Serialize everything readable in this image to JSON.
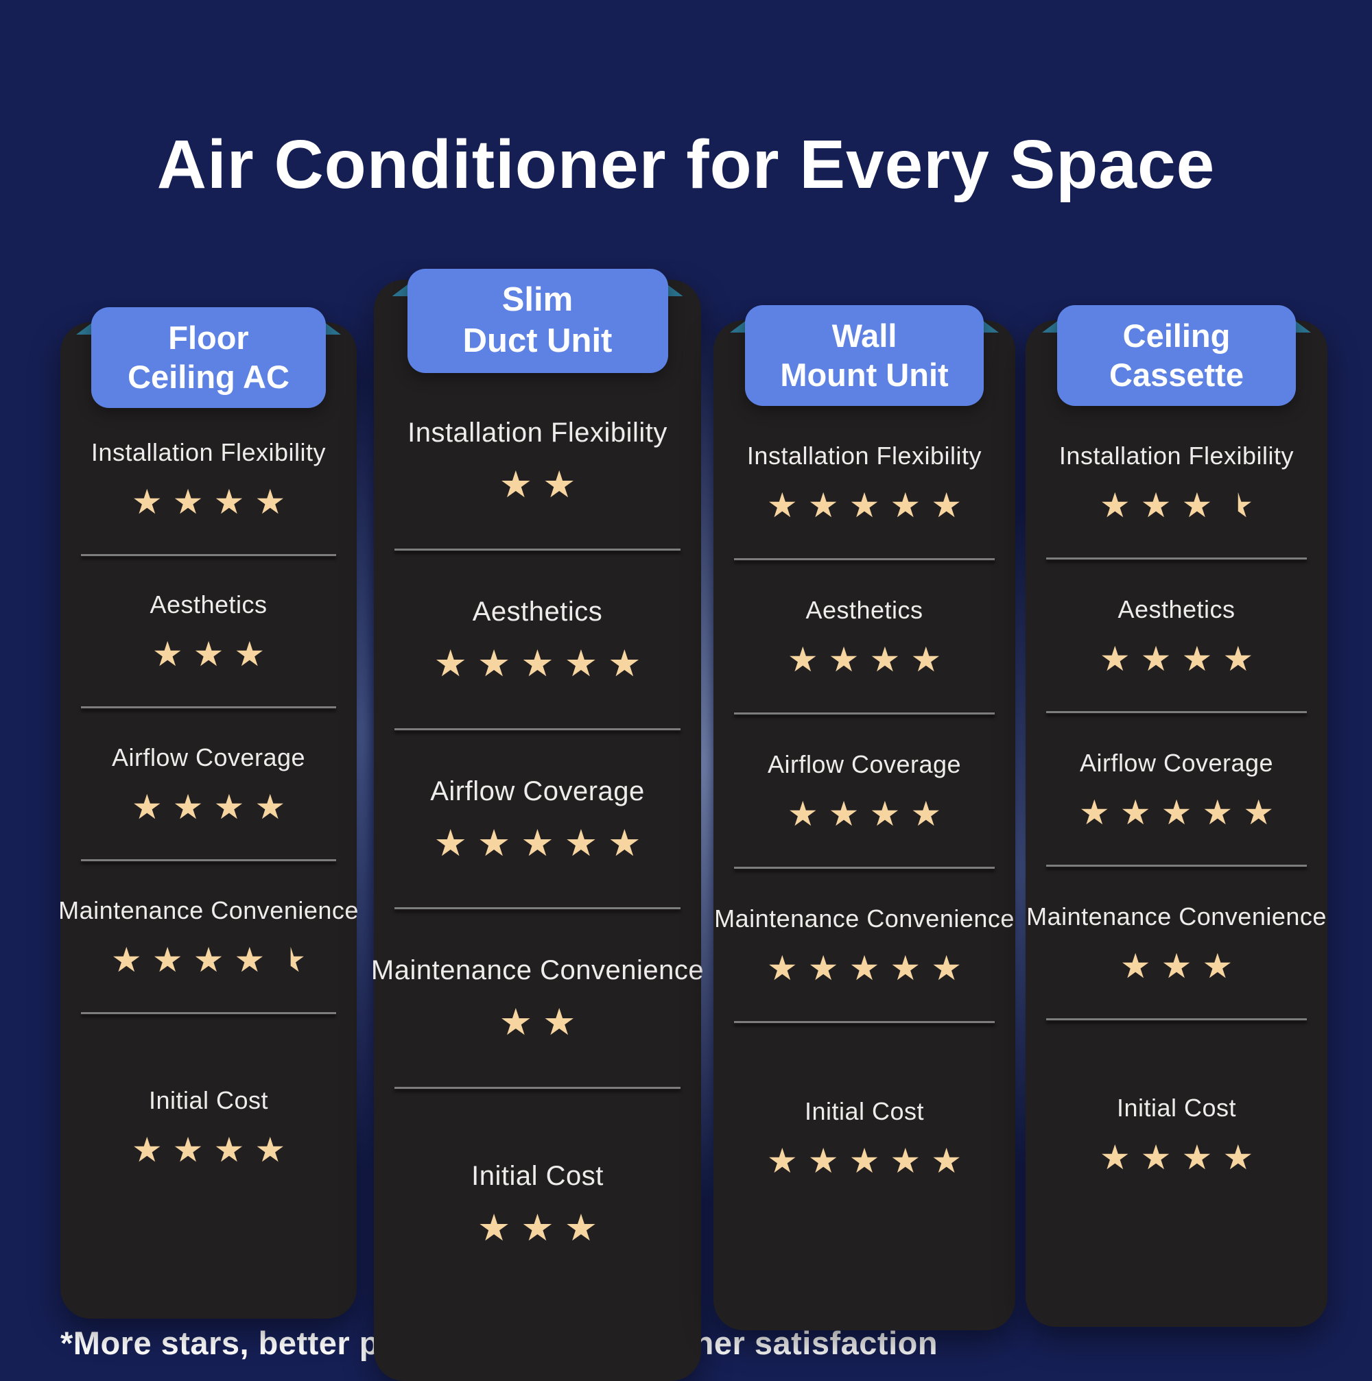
{
  "title": "Air Conditioner for Every Space",
  "footnote": "*More stars, better performance, and higher satisfaction",
  "colors": {
    "background": "#161f54",
    "card": "#221f20",
    "badge_blue": "#5d82e3",
    "ribbon_teal": "#2b7390",
    "star_gold": "#f6d5a1",
    "text": "#ffffff"
  },
  "columns": [
    {
      "name": "Floor Ceiling AC",
      "header_lines": [
        "Floor",
        "Ceiling AC"
      ],
      "rows": [
        {
          "label": "Installation Flexibility",
          "stars": 4
        },
        {
          "label": "Aesthetics",
          "stars": 3
        },
        {
          "label": "Airflow Coverage",
          "stars": 4
        },
        {
          "label": "Maintenance Convenience",
          "stars": 4.5
        },
        {
          "label": "Initial Cost",
          "stars": 4
        }
      ]
    },
    {
      "name": "Slim Duct Unit",
      "header_lines": [
        "Slim",
        "Duct Unit"
      ],
      "rows": [
        {
          "label": "Installation Flexibility",
          "stars": 2
        },
        {
          "label": "Aesthetics",
          "stars": 5
        },
        {
          "label": "Airflow Coverage",
          "stars": 5
        },
        {
          "label": "Maintenance Convenience",
          "stars": 2
        },
        {
          "label": "Initial Cost",
          "stars": 3
        }
      ]
    },
    {
      "name": "Wall Mount Unit",
      "header_lines": [
        "Wall",
        "Mount Unit"
      ],
      "rows": [
        {
          "label": "Installation Flexibility",
          "stars": 5
        },
        {
          "label": "Aesthetics",
          "stars": 4
        },
        {
          "label": "Airflow Coverage",
          "stars": 4
        },
        {
          "label": "Maintenance Convenience",
          "stars": 5
        },
        {
          "label": "Initial Cost",
          "stars": 5
        }
      ]
    },
    {
      "name": "Ceiling Cassette",
      "header_lines": [
        "Ceiling",
        "Cassette"
      ],
      "rows": [
        {
          "label": "Installation Flexibility",
          "stars": 3.5
        },
        {
          "label": "Aesthetics",
          "stars": 4
        },
        {
          "label": "Airflow Coverage",
          "stars": 5
        },
        {
          "label": "Maintenance Convenience",
          "stars": 3
        },
        {
          "label": "Initial Cost",
          "stars": 4
        }
      ]
    }
  ],
  "chart_data": {
    "type": "table",
    "title": "Air Conditioner for Every Space",
    "categories": [
      "Installation Flexibility",
      "Aesthetics",
      "Airflow Coverage",
      "Maintenance Convenience",
      "Initial Cost"
    ],
    "series": [
      {
        "name": "Floor Ceiling AC",
        "values": [
          4,
          3,
          4,
          4.5,
          4
        ]
      },
      {
        "name": "Slim Duct Unit",
        "values": [
          2,
          5,
          5,
          2,
          3
        ]
      },
      {
        "name": "Wall Mount Unit",
        "values": [
          5,
          4,
          4,
          5,
          5
        ]
      },
      {
        "name": "Ceiling Cassette",
        "values": [
          3.5,
          4,
          5,
          3,
          4
        ]
      }
    ],
    "value_range": [
      0,
      5
    ],
    "value_unit": "stars",
    "annotation": "*More stars, better performance, and higher satisfaction",
    "legend_position": "none"
  },
  "logo": {
    "name": "house-with-d-monogram"
  }
}
